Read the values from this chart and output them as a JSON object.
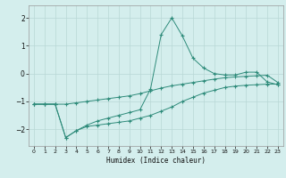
{
  "line1_x": [
    0,
    1,
    2,
    3,
    4,
    5,
    6,
    7,
    8,
    9,
    10,
    11,
    12,
    13,
    14,
    15,
    16,
    17,
    18,
    19,
    20,
    21,
    22,
    23
  ],
  "line1_y": [
    -1.1,
    -1.1,
    -1.1,
    -2.3,
    -2.05,
    -1.85,
    -1.7,
    -1.6,
    -1.5,
    -1.4,
    -1.3,
    -0.55,
    1.4,
    2.0,
    1.35,
    0.55,
    0.2,
    0.0,
    -0.05,
    -0.05,
    0.05,
    0.05,
    -0.3,
    -0.4
  ],
  "line2_x": [
    0,
    1,
    2,
    3,
    4,
    5,
    6,
    7,
    8,
    9,
    10,
    11,
    12,
    13,
    14,
    15,
    16,
    17,
    18,
    19,
    20,
    21,
    22,
    23
  ],
  "line2_y": [
    -1.1,
    -1.1,
    -1.1,
    -2.3,
    -2.05,
    -1.9,
    -1.85,
    -1.8,
    -1.75,
    -1.7,
    -1.6,
    -1.5,
    -1.35,
    -1.2,
    -1.0,
    -0.85,
    -0.7,
    -0.6,
    -0.5,
    -0.45,
    -0.42,
    -0.4,
    -0.38,
    -0.38
  ],
  "line3_x": [
    0,
    1,
    2,
    3,
    4,
    5,
    6,
    7,
    8,
    9,
    10,
    11,
    12,
    13,
    14,
    15,
    16,
    17,
    18,
    19,
    20,
    21,
    22,
    23
  ],
  "line3_y": [
    -1.1,
    -1.1,
    -1.1,
    -1.1,
    -1.05,
    -1.0,
    -0.95,
    -0.9,
    -0.85,
    -0.8,
    -0.72,
    -0.62,
    -0.52,
    -0.44,
    -0.38,
    -0.32,
    -0.26,
    -0.2,
    -0.15,
    -0.12,
    -0.1,
    -0.08,
    -0.06,
    -0.32
  ],
  "line_color": "#2e8b7a",
  "bg_color": "#d4eeed",
  "grid_color": "#b8d8d6",
  "xlabel": "Humidex (Indice chaleur)",
  "xlim": [
    -0.5,
    23.5
  ],
  "ylim": [
    -2.6,
    2.45
  ],
  "yticks": [
    -2,
    -1,
    0,
    1,
    2
  ],
  "xticks": [
    0,
    1,
    2,
    3,
    4,
    5,
    6,
    7,
    8,
    9,
    10,
    11,
    12,
    13,
    14,
    15,
    16,
    17,
    18,
    19,
    20,
    21,
    22,
    23
  ]
}
